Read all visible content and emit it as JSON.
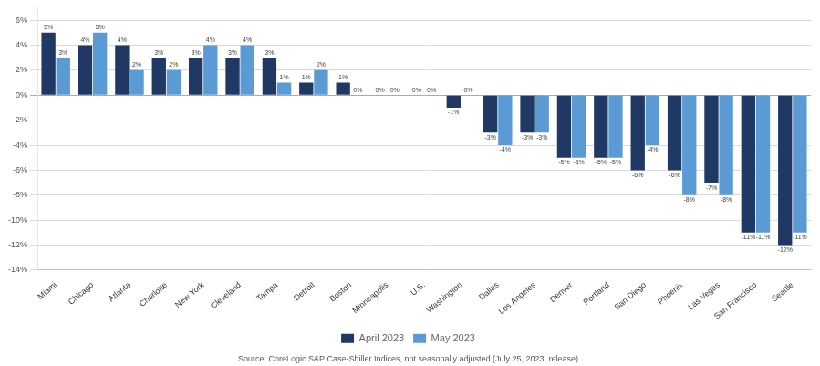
{
  "chart_data": {
    "type": "bar",
    "categories": [
      "Miami",
      "Chicago",
      "Atlanta",
      "Charlotte",
      "New York",
      "Cleveland",
      "Tampa",
      "Detroit",
      "Boston",
      "Minneapolis",
      "U.S.",
      "Washington",
      "Dallas",
      "Los Angeles",
      "Denver",
      "Portland",
      "San Diego",
      "Phoenix",
      "Las Vegas",
      "San Francisco",
      "Seattle"
    ],
    "series": [
      {
        "name": "April 2023",
        "color": "#1f3864",
        "values": [
          5,
          4,
          4,
          3,
          3,
          3,
          3,
          1,
          1,
          0,
          0,
          -1,
          -3,
          -3,
          -5,
          -5,
          -6,
          -6,
          -7,
          -11,
          -12
        ],
        "value_labels": [
          "5%",
          "4%",
          "4%",
          "3%",
          "3%",
          "3%",
          "3%",
          "1%",
          "1%",
          "0%",
          "0%",
          "-1%",
          "-3%",
          "-3%",
          "-5%",
          "-5%",
          "-6%",
          "-6%",
          "-7%",
          "-11%",
          "-12%"
        ]
      },
      {
        "name": "May 2023",
        "color": "#5b9bd5",
        "values": [
          3,
          5,
          2,
          2,
          4,
          4,
          1,
          2,
          0,
          0,
          0,
          0,
          -4,
          -3,
          -5,
          -5,
          -4,
          -8,
          -8,
          -11,
          -11
        ],
        "value_labels": [
          "3%",
          "5%",
          "2%",
          "2%",
          "4%",
          "4%",
          "1%",
          "2%",
          "0%",
          "0%",
          "0%",
          "0%",
          "-4%",
          "-3%",
          "-5%",
          "-5%",
          "-4%",
          "-8%",
          "-8%",
          "-11%",
          "-11%"
        ]
      }
    ],
    "ylim": [
      -14,
      7
    ],
    "yticks": [
      {
        "value": -14,
        "label": "-14%"
      },
      {
        "value": -12,
        "label": "-12%"
      },
      {
        "value": -10,
        "label": "-10%"
      },
      {
        "value": -8,
        "label": "-8%"
      },
      {
        "value": -6,
        "label": "-6%"
      },
      {
        "value": -4,
        "label": "-4%"
      },
      {
        "value": -2,
        "label": "-2%"
      },
      {
        "value": 0,
        "label": "0%"
      },
      {
        "value": 2,
        "label": "2%"
      },
      {
        "value": 4,
        "label": "4%"
      },
      {
        "value": 6,
        "label": "6%"
      }
    ],
    "grid": true,
    "data_labels": true,
    "legend": "bottom",
    "annotations": [
      "Source: CoreLogic S&P Case-Shiller Indices, not seasonally adjusted (July 25, 2023, release)"
    ]
  }
}
